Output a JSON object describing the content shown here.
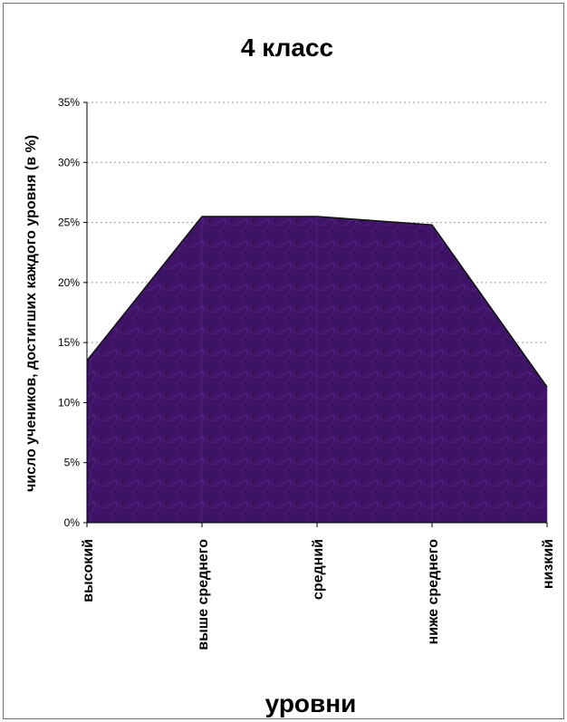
{
  "chart_data": {
    "type": "area",
    "title": "4 класс",
    "xlabel": "уровни",
    "ylabel": "число учеников, достигших каждого уровня (в %)",
    "categories": [
      "высокий",
      "выше среднего",
      "средний",
      "ниже среднего",
      "низкий"
    ],
    "values": [
      13.5,
      25.5,
      25.5,
      24.8,
      11.3
    ],
    "ylim": [
      0,
      35
    ],
    "yticks": [
      "0%",
      "5%",
      "10%",
      "15%",
      "20%",
      "25%",
      "30%",
      "35%"
    ],
    "grid": true,
    "fill_color": "#3f1468",
    "fill_texture_color": "#5d2a92",
    "line_color": "#111111",
    "grid_color": "#9a9a9a"
  }
}
